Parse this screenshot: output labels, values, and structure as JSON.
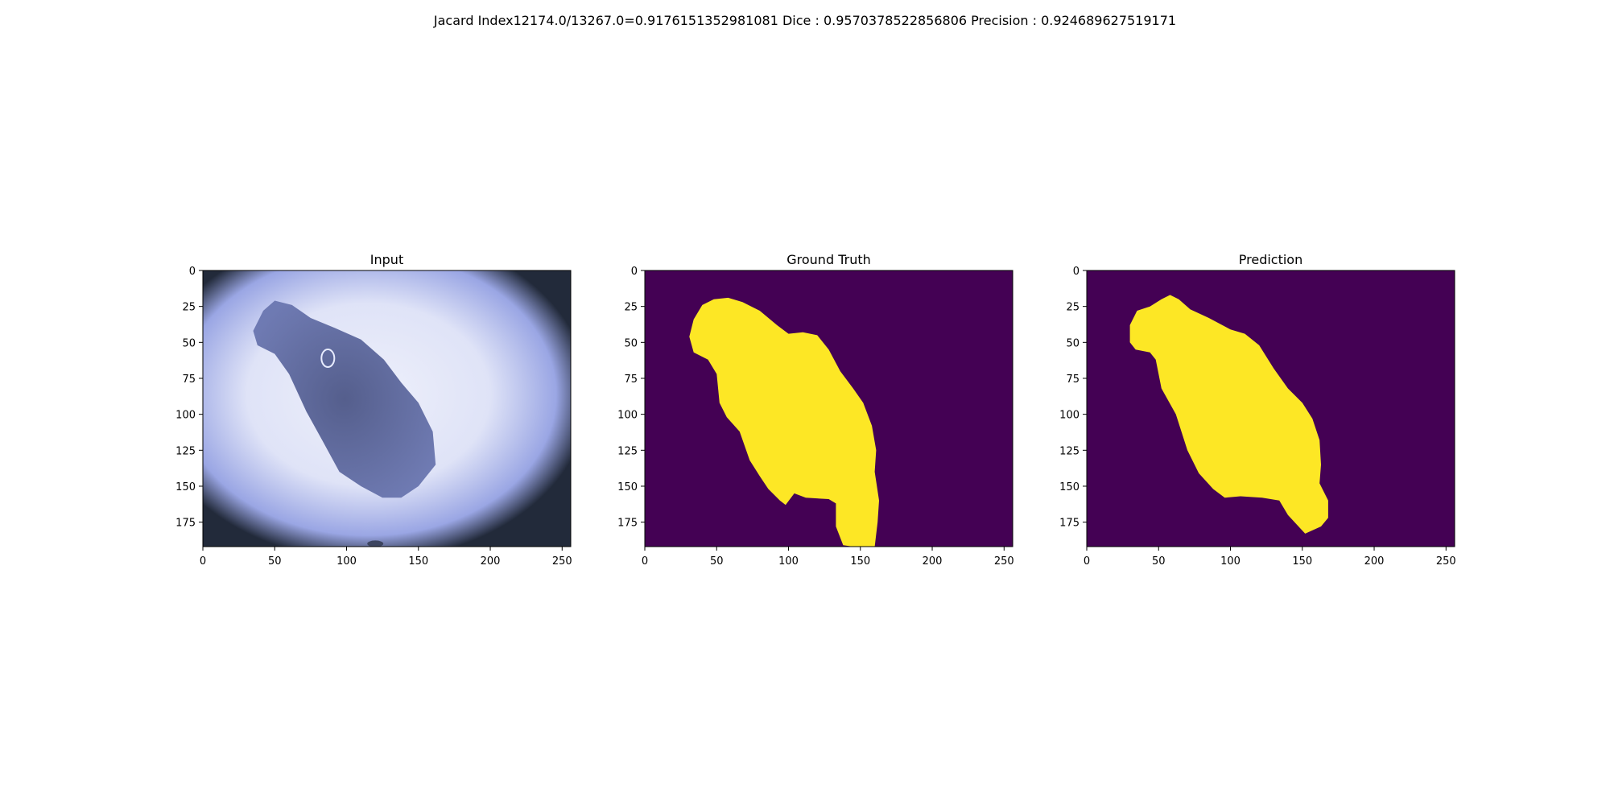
{
  "figure": {
    "suptitle": "Jacard Index12174.0/13267.0=0.9176151352981081 Dice : 0.9570378522856806 Precision : 0.924689627519171"
  },
  "colors": {
    "background": "#440154",
    "mask": "#fde725",
    "skin_light": "#eef0fb",
    "skin_blue": "#9aa6e4",
    "lesion_dark": "#4d5787",
    "vignette": "#222a3a"
  },
  "chart_data": [
    {
      "type": "image",
      "title": "Input",
      "xlim": [
        0,
        256
      ],
      "ylim": [
        192,
        0
      ],
      "xticks": [
        "0",
        "50",
        "100",
        "150",
        "200",
        "250"
      ],
      "xtick_values": [
        0,
        50,
        100,
        150,
        200,
        250
      ],
      "yticks": [
        "0",
        "25",
        "50",
        "75",
        "100",
        "125",
        "150",
        "175"
      ],
      "ytick_values": [
        0,
        25,
        50,
        75,
        100,
        125,
        150,
        175
      ],
      "lesion_outline": [
        [
          35,
          42
        ],
        [
          42,
          28
        ],
        [
          50,
          21
        ],
        [
          62,
          24
        ],
        [
          75,
          33
        ],
        [
          92,
          40
        ],
        [
          110,
          48
        ],
        [
          126,
          62
        ],
        [
          138,
          78
        ],
        [
          150,
          92
        ],
        [
          160,
          112
        ],
        [
          162,
          135
        ],
        [
          150,
          150
        ],
        [
          138,
          158
        ],
        [
          125,
          158
        ],
        [
          110,
          150
        ],
        [
          95,
          140
        ],
        [
          83,
          118
        ],
        [
          72,
          98
        ],
        [
          60,
          72
        ],
        [
          50,
          58
        ],
        [
          38,
          52
        ]
      ]
    },
    {
      "type": "image",
      "title": "Ground Truth",
      "xlim": [
        0,
        256
      ],
      "ylim": [
        192,
        0
      ],
      "xticks": [
        "0",
        "50",
        "100",
        "150",
        "200",
        "250"
      ],
      "xtick_values": [
        0,
        50,
        100,
        150,
        200,
        250
      ],
      "yticks": [
        "0",
        "25",
        "50",
        "75",
        "100",
        "125",
        "150",
        "175"
      ],
      "yticks_values": [
        0,
        25,
        50,
        75,
        100,
        125,
        150,
        175
      ],
      "mask_outline": [
        [
          34,
          34
        ],
        [
          40,
          24
        ],
        [
          48,
          20
        ],
        [
          58,
          19
        ],
        [
          68,
          22
        ],
        [
          80,
          28
        ],
        [
          92,
          38
        ],
        [
          100,
          44
        ],
        [
          110,
          43
        ],
        [
          120,
          45
        ],
        [
          128,
          55
        ],
        [
          136,
          70
        ],
        [
          145,
          82
        ],
        [
          152,
          92
        ],
        [
          158,
          108
        ],
        [
          161,
          125
        ],
        [
          160,
          140
        ],
        [
          163,
          160
        ],
        [
          162,
          175
        ],
        [
          160,
          192
        ],
        [
          145,
          192
        ],
        [
          138,
          191
        ],
        [
          133,
          178
        ],
        [
          133,
          162
        ],
        [
          128,
          159
        ],
        [
          112,
          158
        ],
        [
          104,
          155
        ],
        [
          98,
          163
        ],
        [
          94,
          160
        ],
        [
          86,
          152
        ],
        [
          80,
          143
        ],
        [
          73,
          132
        ],
        [
          66,
          112
        ],
        [
          57,
          102
        ],
        [
          52,
          92
        ],
        [
          50,
          72
        ],
        [
          44,
          62
        ],
        [
          34,
          57
        ],
        [
          31,
          46
        ]
      ]
    },
    {
      "type": "image",
      "title": "Prediction",
      "xlim": [
        0,
        256
      ],
      "ylim": [
        192,
        0
      ],
      "xticks": [
        "0",
        "50",
        "100",
        "150",
        "200",
        "250"
      ],
      "xtick_values": [
        0,
        50,
        100,
        150,
        200,
        250
      ],
      "yticks": [
        "0",
        "25",
        "50",
        "75",
        "100",
        "125",
        "150",
        "175"
      ],
      "ytick_values": [
        0,
        25,
        50,
        75,
        100,
        125,
        150,
        175
      ],
      "mask_outline": [
        [
          30,
          38
        ],
        [
          35,
          28
        ],
        [
          44,
          25
        ],
        [
          52,
          20
        ],
        [
          58,
          17
        ],
        [
          64,
          20
        ],
        [
          72,
          27
        ],
        [
          85,
          33
        ],
        [
          100,
          41
        ],
        [
          110,
          44
        ],
        [
          120,
          52
        ],
        [
          130,
          68
        ],
        [
          140,
          82
        ],
        [
          150,
          92
        ],
        [
          157,
          103
        ],
        [
          162,
          118
        ],
        [
          163,
          135
        ],
        [
          162,
          148
        ],
        [
          168,
          160
        ],
        [
          168,
          172
        ],
        [
          163,
          178
        ],
        [
          152,
          183
        ],
        [
          140,
          170
        ],
        [
          134,
          160
        ],
        [
          122,
          158
        ],
        [
          107,
          157
        ],
        [
          96,
          158
        ],
        [
          88,
          152
        ],
        [
          78,
          141
        ],
        [
          70,
          125
        ],
        [
          62,
          100
        ],
        [
          52,
          82
        ],
        [
          48,
          62
        ],
        [
          44,
          57
        ],
        [
          34,
          55
        ],
        [
          30,
          50
        ]
      ]
    }
  ]
}
